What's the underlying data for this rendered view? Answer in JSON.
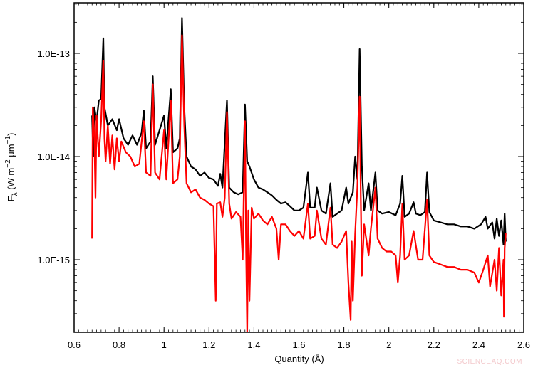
{
  "chart_data": {
    "type": "line",
    "title": "",
    "xlabel": "Quantity (Å)",
    "ylabel": "F_λ (W m^-2 μm^-1)",
    "ylabel_parts": {
      "main": "F",
      "sub": "λ",
      "unit": " (W m",
      "exp1": "−2",
      "mid": " μm",
      "exp2": "−1",
      "end": ")"
    },
    "xlim": [
      0.6,
      2.6
    ],
    "ylim": [
      2e-16,
      3e-13
    ],
    "yscale": "log",
    "grid": false,
    "legend": null,
    "x_ticks": [
      "0.6",
      "0.8",
      "1",
      "1.2",
      "1.4",
      "1.6",
      "1.8",
      "2",
      "2.2",
      "2.4",
      "2.6"
    ],
    "y_ticks": [
      "1.0E-13",
      "1.0E-14",
      "1.0E-15"
    ],
    "series": [
      {
        "name": "black spectrum",
        "color": "#000000",
        "points": [
          [
            0.68,
            2.5e-14
          ],
          [
            0.685,
            1e-14
          ],
          [
            0.69,
            3e-14
          ],
          [
            0.7,
            2.2e-14
          ],
          [
            0.71,
            3.5e-14
          ],
          [
            0.72,
            3.6e-14
          ],
          [
            0.73,
            1.4e-13
          ],
          [
            0.735,
            3e-14
          ],
          [
            0.75,
            2e-14
          ],
          [
            0.77,
            2.3e-14
          ],
          [
            0.79,
            1.8e-14
          ],
          [
            0.8,
            2.3e-14
          ],
          [
            0.82,
            1.5e-14
          ],
          [
            0.84,
            1.3e-14
          ],
          [
            0.86,
            1.6e-14
          ],
          [
            0.88,
            1.3e-14
          ],
          [
            0.9,
            1.7e-14
          ],
          [
            0.91,
            2.8e-14
          ],
          [
            0.92,
            1.2e-14
          ],
          [
            0.94,
            1.4e-14
          ],
          [
            0.95,
            6e-14
          ],
          [
            0.96,
            1.3e-14
          ],
          [
            0.98,
            1.8e-14
          ],
          [
            1.0,
            2.5e-14
          ],
          [
            1.01,
            1.2e-14
          ],
          [
            1.03,
            4.5e-14
          ],
          [
            1.04,
            1.1e-14
          ],
          [
            1.06,
            1.2e-14
          ],
          [
            1.07,
            1.5e-14
          ],
          [
            1.08,
            2.2e-13
          ],
          [
            1.09,
            3e-14
          ],
          [
            1.1,
            1e-14
          ],
          [
            1.12,
            8e-15
          ],
          [
            1.14,
            7.5e-15
          ],
          [
            1.16,
            6.5e-15
          ],
          [
            1.18,
            7e-15
          ],
          [
            1.2,
            6.2e-15
          ],
          [
            1.22,
            6e-15
          ],
          [
            1.24,
            5.2e-15
          ],
          [
            1.25,
            6.8e-15
          ],
          [
            1.26,
            5e-15
          ],
          [
            1.28,
            3.5e-14
          ],
          [
            1.29,
            5e-15
          ],
          [
            1.31,
            4.5e-15
          ],
          [
            1.33,
            4.3e-15
          ],
          [
            1.35,
            4.5e-15
          ],
          [
            1.36,
            3.2e-14
          ],
          [
            1.37,
            9e-15
          ],
          [
            1.38,
            8e-15
          ],
          [
            1.4,
            6e-15
          ],
          [
            1.42,
            5e-15
          ],
          [
            1.44,
            4.8e-15
          ],
          [
            1.46,
            4.5e-15
          ],
          [
            1.48,
            4.2e-15
          ],
          [
            1.5,
            3.8e-15
          ],
          [
            1.52,
            3.5e-15
          ],
          [
            1.54,
            3.6e-15
          ],
          [
            1.56,
            3.3e-15
          ],
          [
            1.58,
            3e-15
          ],
          [
            1.6,
            3e-15
          ],
          [
            1.62,
            3.2e-15
          ],
          [
            1.64,
            7e-15
          ],
          [
            1.65,
            3.2e-15
          ],
          [
            1.67,
            3.2e-15
          ],
          [
            1.68,
            5e-15
          ],
          [
            1.7,
            3e-15
          ],
          [
            1.72,
            2.8e-15
          ],
          [
            1.74,
            5.5e-15
          ],
          [
            1.75,
            2.6e-15
          ],
          [
            1.77,
            2.8e-15
          ],
          [
            1.79,
            3e-15
          ],
          [
            1.81,
            5e-15
          ],
          [
            1.82,
            3.5e-15
          ],
          [
            1.84,
            4.5e-15
          ],
          [
            1.85,
            1e-14
          ],
          [
            1.86,
            6e-15
          ],
          [
            1.87,
            1.1e-13
          ],
          [
            1.88,
            8e-15
          ],
          [
            1.89,
            3e-15
          ],
          [
            1.91,
            5.5e-15
          ],
          [
            1.92,
            3e-15
          ],
          [
            1.94,
            7e-15
          ],
          [
            1.95,
            3e-15
          ],
          [
            1.97,
            2.8e-15
          ],
          [
            2.0,
            2.9e-15
          ],
          [
            2.03,
            2.7e-15
          ],
          [
            2.05,
            3.5e-15
          ],
          [
            2.06,
            6.5e-15
          ],
          [
            2.07,
            2.6e-15
          ],
          [
            2.09,
            2.8e-15
          ],
          [
            2.11,
            3.6e-15
          ],
          [
            2.12,
            2.8e-15
          ],
          [
            2.14,
            2.7e-15
          ],
          [
            2.16,
            2.9e-15
          ],
          [
            2.17,
            7e-15
          ],
          [
            2.18,
            2.9e-15
          ],
          [
            2.2,
            2.4e-15
          ],
          [
            2.23,
            2.3e-15
          ],
          [
            2.26,
            2.2e-15
          ],
          [
            2.29,
            2.2e-15
          ],
          [
            2.32,
            2.1e-15
          ],
          [
            2.35,
            2.1e-15
          ],
          [
            2.38,
            2e-15
          ],
          [
            2.41,
            2.2e-15
          ],
          [
            2.43,
            2.6e-15
          ],
          [
            2.44,
            2e-15
          ],
          [
            2.46,
            2.3e-15
          ],
          [
            2.47,
            1.6e-15
          ],
          [
            2.48,
            2.5e-15
          ],
          [
            2.49,
            1.7e-15
          ],
          [
            2.5,
            2.4e-15
          ],
          [
            2.51,
            1.4e-15
          ],
          [
            2.515,
            2.8e-15
          ],
          [
            2.52,
            1.5e-15
          ]
        ]
      },
      {
        "name": "red spectrum",
        "color": "#ff0000",
        "points": [
          [
            0.68,
            1.6e-15
          ],
          [
            0.683,
            3e-14
          ],
          [
            0.69,
            1.5e-14
          ],
          [
            0.695,
            4e-15
          ],
          [
            0.7,
            2.5e-14
          ],
          [
            0.71,
            1e-14
          ],
          [
            0.72,
            2.2e-14
          ],
          [
            0.73,
            8.5e-14
          ],
          [
            0.735,
            1.5e-14
          ],
          [
            0.74,
            9e-15
          ],
          [
            0.75,
            2e-14
          ],
          [
            0.76,
            8.5e-15
          ],
          [
            0.77,
            1.6e-14
          ],
          [
            0.78,
            7.5e-15
          ],
          [
            0.79,
            1.5e-14
          ],
          [
            0.8,
            9e-15
          ],
          [
            0.81,
            1.4e-14
          ],
          [
            0.83,
            1.1e-14
          ],
          [
            0.85,
            1e-14
          ],
          [
            0.87,
            8e-15
          ],
          [
            0.89,
            8.5e-15
          ],
          [
            0.91,
            2.2e-14
          ],
          [
            0.92,
            7e-15
          ],
          [
            0.94,
            6.5e-15
          ],
          [
            0.95,
            5e-14
          ],
          [
            0.96,
            7e-15
          ],
          [
            0.98,
            6e-15
          ],
          [
            1.0,
            1.8e-14
          ],
          [
            1.01,
            6e-15
          ],
          [
            1.03,
            3.5e-14
          ],
          [
            1.04,
            5.5e-15
          ],
          [
            1.06,
            6e-15
          ],
          [
            1.07,
            1e-14
          ],
          [
            1.08,
            1.5e-13
          ],
          [
            1.09,
            2e-14
          ],
          [
            1.1,
            5.5e-15
          ],
          [
            1.12,
            4.5e-15
          ],
          [
            1.14,
            4.8e-15
          ],
          [
            1.16,
            4e-15
          ],
          [
            1.18,
            3.8e-15
          ],
          [
            1.2,
            3.5e-15
          ],
          [
            1.22,
            3.3e-15
          ],
          [
            1.23,
            4e-16
          ],
          [
            1.235,
            3.5e-15
          ],
          [
            1.25,
            3.6e-15
          ],
          [
            1.26,
            2.6e-15
          ],
          [
            1.27,
            4e-15
          ],
          [
            1.28,
            2.7e-14
          ],
          [
            1.29,
            3.5e-15
          ],
          [
            1.3,
            2.5e-15
          ],
          [
            1.32,
            2.9e-15
          ],
          [
            1.34,
            2.6e-15
          ],
          [
            1.35,
            1e-15
          ],
          [
            1.36,
            2.2e-14
          ],
          [
            1.365,
            1.2e-15
          ],
          [
            1.37,
            2e-16
          ],
          [
            1.375,
            3e-15
          ],
          [
            1.38,
            4e-16
          ],
          [
            1.39,
            3.2e-15
          ],
          [
            1.4,
            2.5e-15
          ],
          [
            1.42,
            2.8e-15
          ],
          [
            1.44,
            2.4e-15
          ],
          [
            1.46,
            2.2e-15
          ],
          [
            1.48,
            2.6e-15
          ],
          [
            1.5,
            2e-15
          ],
          [
            1.51,
            1e-15
          ],
          [
            1.52,
            2.2e-15
          ],
          [
            1.54,
            2.2e-15
          ],
          [
            1.56,
            1.9e-15
          ],
          [
            1.58,
            1.7e-15
          ],
          [
            1.6,
            1.9e-15
          ],
          [
            1.62,
            1.6e-15
          ],
          [
            1.64,
            3.5e-15
          ],
          [
            1.65,
            1.6e-15
          ],
          [
            1.67,
            1.7e-15
          ],
          [
            1.68,
            3e-15
          ],
          [
            1.7,
            1.6e-15
          ],
          [
            1.72,
            1.4e-15
          ],
          [
            1.74,
            3.2e-15
          ],
          [
            1.75,
            1.4e-15
          ],
          [
            1.77,
            1.3e-15
          ],
          [
            1.79,
            1.5e-15
          ],
          [
            1.81,
            1.9e-15
          ],
          [
            1.82,
            6e-16
          ],
          [
            1.83,
            2.6e-16
          ],
          [
            1.835,
            1.5e-15
          ],
          [
            1.84,
            4e-16
          ],
          [
            1.85,
            1.8e-15
          ],
          [
            1.86,
            5e-15
          ],
          [
            1.87,
            3.8e-14
          ],
          [
            1.875,
            4e-15
          ],
          [
            1.88,
            7e-16
          ],
          [
            1.89,
            2.2e-15
          ],
          [
            1.91,
            1.1e-15
          ],
          [
            1.92,
            2e-15
          ],
          [
            1.94,
            5e-15
          ],
          [
            1.95,
            1.6e-15
          ],
          [
            1.97,
            1.3e-15
          ],
          [
            1.99,
            1.2e-15
          ],
          [
            2.01,
            1.2e-15
          ],
          [
            2.03,
            1.1e-15
          ],
          [
            2.04,
            6e-16
          ],
          [
            2.05,
            1.1e-15
          ],
          [
            2.06,
            3.5e-15
          ],
          [
            2.07,
            1e-15
          ],
          [
            2.09,
            1.1e-15
          ],
          [
            2.11,
            1.9e-15
          ],
          [
            2.13,
            1e-15
          ],
          [
            2.15,
            1e-15
          ],
          [
            2.17,
            3.8e-15
          ],
          [
            2.18,
            1.1e-15
          ],
          [
            2.2,
            9.5e-16
          ],
          [
            2.23,
            9e-16
          ],
          [
            2.26,
            8.5e-16
          ],
          [
            2.29,
            8.5e-16
          ],
          [
            2.32,
            8e-16
          ],
          [
            2.35,
            8e-16
          ],
          [
            2.38,
            7.5e-16
          ],
          [
            2.4,
            6e-16
          ],
          [
            2.42,
            8e-16
          ],
          [
            2.44,
            1.1e-15
          ],
          [
            2.45,
            5.5e-16
          ],
          [
            2.47,
            1e-15
          ],
          [
            2.48,
            5e-16
          ],
          [
            2.49,
            1.3e-15
          ],
          [
            2.5,
            4.5e-16
          ],
          [
            2.51,
            1e-15
          ],
          [
            2.512,
            2.8e-16
          ],
          [
            2.515,
            1.3e-15
          ],
          [
            2.52,
            1.8e-15
          ]
        ]
      }
    ],
    "annotations": []
  },
  "watermark": "SCIENCEAQ.COM"
}
